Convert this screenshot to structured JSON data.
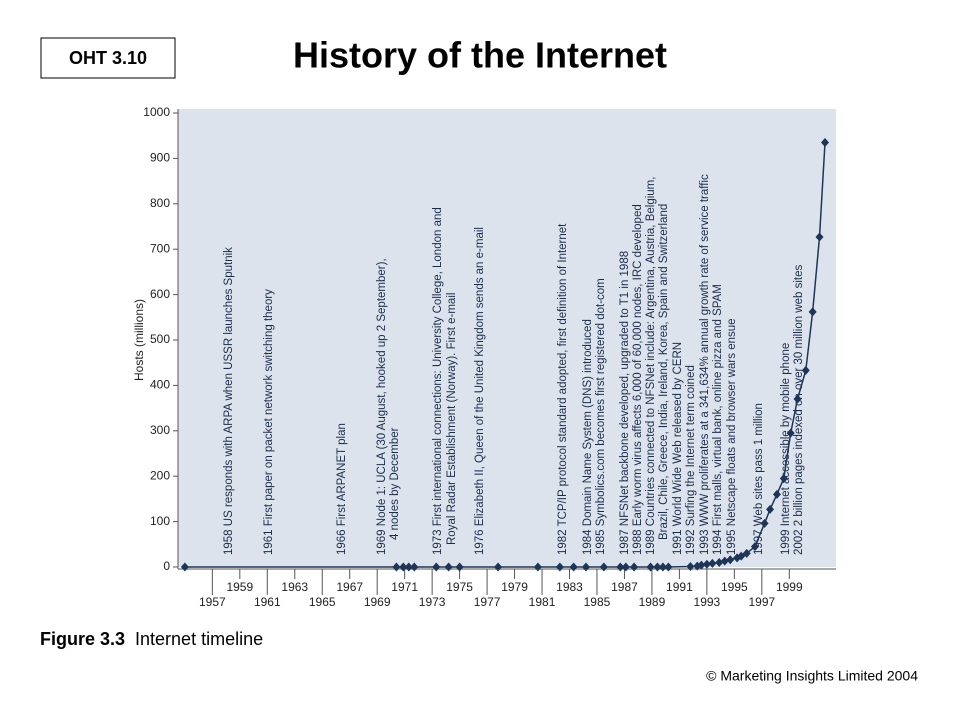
{
  "badge": "OHT 3.10",
  "chart_data": {
    "type": "line",
    "title": "History of the Internet",
    "y_label": "Hosts (millions)",
    "xlim": [
      1954.5,
      2002.4
    ],
    "ylim": [
      0,
      1000
    ],
    "xticks": [
      1957,
      1959,
      1961,
      1963,
      1965,
      1967,
      1969,
      1971,
      1973,
      1975,
      1977,
      1979,
      1981,
      1983,
      1985,
      1987,
      1989,
      1991,
      1993,
      1995,
      1997,
      1999
    ],
    "yticks": [
      0,
      100,
      200,
      300,
      400,
      500,
      600,
      700,
      800,
      900,
      1000
    ],
    "series": [
      {
        "color": "#1c3559",
        "x": [
          1955.0,
          1970.4,
          1970.9,
          1971.3,
          1971.7,
          1973.3,
          1974.2,
          1975.0,
          1977.8,
          1980.7,
          1982.3,
          1983.3,
          1984.2,
          1985.5,
          1986.7,
          1987.1,
          1987.7,
          1988.9,
          1989.4,
          1989.8,
          1990.2,
          1991.8,
          1992.3,
          1992.6,
          1993.0,
          1993.4,
          1993.9,
          1994.3,
          1994.7,
          1995.2,
          1995.5,
          1995.9,
          1996.5,
          1997.2,
          1997.6,
          1998.1,
          1998.6,
          1999.1,
          1999.6,
          2000.2,
          2000.7,
          2001.2,
          2001.6
        ],
        "values": [
          0,
          0,
          0,
          0,
          0,
          0,
          0,
          0,
          0,
          0,
          0,
          0,
          0,
          0,
          0,
          0,
          0,
          0,
          0,
          0,
          0,
          1,
          2,
          4,
          6,
          8,
          10,
          13,
          16,
          20,
          24,
          30,
          45,
          96,
          127,
          160,
          195,
          295,
          370,
          433,
          562,
          727,
          935
        ]
      }
    ],
    "annotations": [
      "1958 US responds with ARPA when USSR launches Sputnik",
      "1961 First paper on packet network switching theory",
      "1966 First ARPANET plan",
      "1969 Node 1: UCLA (30 August, hooked up 2 September),",
      "4 nodes by December",
      "1973 First international connections: University College, London and",
      "Royal Radar Establishment (Norway). First e-mail",
      "1976 Elizabeth II, Queen of the United Kingdom sends an e-mail",
      "1982 TCP/IP protocol standard adopted, first definition of Internet",
      "1984 Domain Name System (DNS) introduced",
      "1985 Symbolics.com becomes first registered dot-com",
      "1987 NFSNet backbone developed, upgraded to T1 in 1988",
      "1988 Early worm virus affects 6,000 of 60,000 nodes, IRC developed",
      "1989 Countries connected to NFSNet include: Argentina, Austria, Belgium,",
      "Brazil, Chile, Greece, India, Ireland, Korea, Spain and Switzerland",
      "1991 World Wide Web released by CERN",
      "1992 Surfing the Internet term coined",
      "1993 WWW proliferates at a 341,634% annual growth rate of service traffic",
      "1994 First malls, virtual bank, online pizza and SPAM",
      "1995 Netscape floats and browser wars ensue",
      "1997 Web sites pass 1 million",
      "1999 Internet accessible by mobile phone",
      "2002 2 billion pages indexed on over 30 million web sites"
    ]
  },
  "caption": {
    "label": "Figure 3.3",
    "text": "Internet timeline"
  },
  "copyright": "© Marketing Insights Limited 2004"
}
